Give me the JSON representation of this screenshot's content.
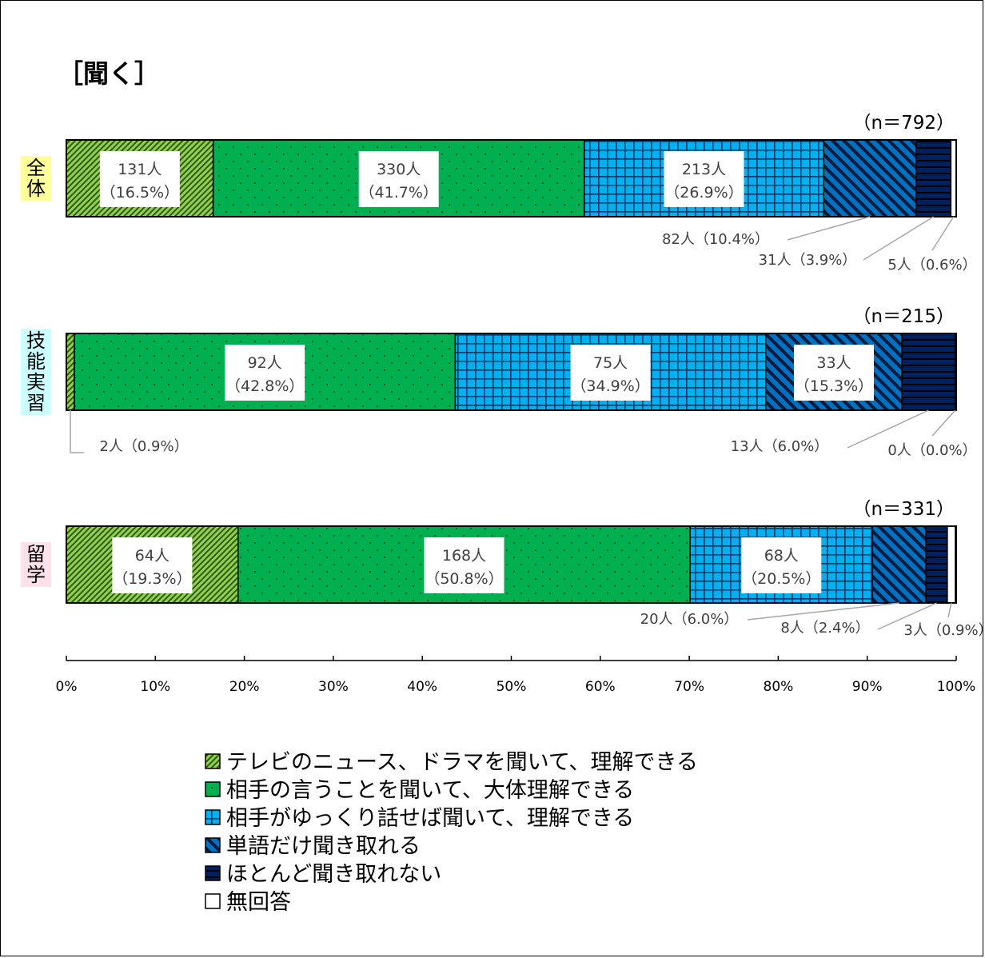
{
  "chart_data": {
    "type": "bar",
    "orientation": "horizontal-stacked-100",
    "title": "［聞く］",
    "x_ticks": [
      "0%",
      "10%",
      "20%",
      "30%",
      "40%",
      "50%",
      "60%",
      "70%",
      "80%",
      "90%",
      "100%"
    ],
    "xlim": [
      0,
      100
    ],
    "legend_position": "bottom",
    "series": [
      {
        "name": "テレビのニュース、ドラマを聞いて、理解できる",
        "color": "#92D050",
        "pattern": "fine-diagonal"
      },
      {
        "name": "相手の言うことを聞いて、大体理解できる",
        "color": "#00B050",
        "pattern": "dots"
      },
      {
        "name": "相手がゆっくり話せば聞いて、理解できる",
        "color": "#00B0F0",
        "pattern": "grid"
      },
      {
        "name": "単語だけ聞き取れる",
        "color": "#0070C0",
        "pattern": "wide-diagonal"
      },
      {
        "name": "ほとんど聞き取れない",
        "color": "#002060",
        "pattern": "horizontal"
      },
      {
        "name": "無回答",
        "color": "#FFFFFF",
        "pattern": "none"
      }
    ],
    "categories": [
      {
        "name": "全体",
        "bg": "#FFFF99",
        "n_label": "（n＝792）",
        "counts": [
          131,
          330,
          213,
          82,
          31,
          5
        ],
        "percents": [
          16.5,
          41.7,
          26.9,
          10.4,
          3.9,
          0.6
        ],
        "labels": [
          {
            "count": "131人",
            "pct": "（16.5%）"
          },
          {
            "count": "330人",
            "pct": "（41.7%）"
          },
          {
            "count": "213人",
            "pct": "（26.9%）"
          },
          {
            "text": "82人（10.4%）"
          },
          {
            "text": "31人（3.9%）"
          },
          {
            "text": "5人（0.6%）"
          }
        ]
      },
      {
        "name": "技能実習",
        "bg": "#CCFFFF",
        "n_label": "（n＝215）",
        "counts": [
          2,
          92,
          75,
          33,
          13,
          0
        ],
        "percents": [
          0.9,
          42.8,
          34.9,
          15.3,
          6.0,
          0.0
        ],
        "labels": [
          {
            "text": "2人（0.9%）"
          },
          {
            "count": "92人",
            "pct": "（42.8%）"
          },
          {
            "count": "75人",
            "pct": "（34.9%）"
          },
          {
            "count": "33人",
            "pct": "（15.3%）"
          },
          {
            "text": "13人（6.0%）"
          },
          {
            "text": "0人（0.0%）"
          }
        ]
      },
      {
        "name": "留学",
        "bg": "#FFE1EC",
        "n_label": "（n＝331）",
        "counts": [
          64,
          168,
          68,
          20,
          8,
          3
        ],
        "percents": [
          19.3,
          50.8,
          20.5,
          6.0,
          2.4,
          0.9
        ],
        "labels": [
          {
            "count": "64人",
            "pct": "（19.3%）"
          },
          {
            "count": "168人",
            "pct": "（50.8%）"
          },
          {
            "count": "68人",
            "pct": "（20.5%）"
          },
          {
            "text": "20人（6.0%）"
          },
          {
            "text": "8人（2.4%）"
          },
          {
            "text": "3人（0.9%）"
          }
        ]
      }
    ]
  }
}
